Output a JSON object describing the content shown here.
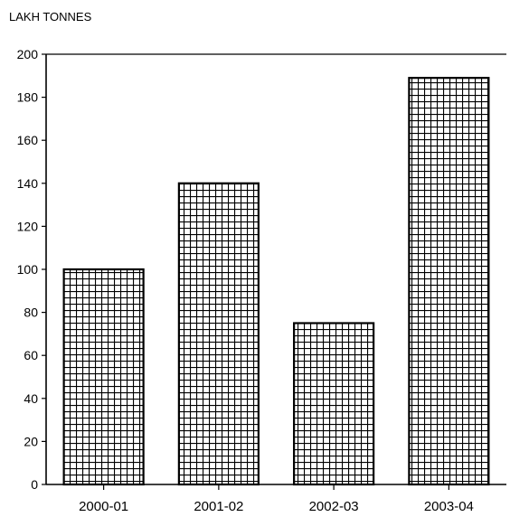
{
  "chart_data": {
    "type": "bar",
    "title": "",
    "xlabel": "",
    "ylabel": "LAKH TONNES",
    "categories": [
      "2000-01",
      "2001-02",
      "2002-03",
      "2003-04"
    ],
    "values": [
      100,
      140,
      75,
      189
    ],
    "ylim": [
      0,
      200
    ],
    "yticks": [
      0,
      20,
      40,
      60,
      80,
      100,
      120,
      140,
      160,
      180,
      200
    ],
    "grid": false,
    "bar_pattern": "crosshatch",
    "colors": {
      "bar_fill": "#ffffff",
      "bar_stroke": "#000000",
      "axis": "#000000"
    }
  }
}
